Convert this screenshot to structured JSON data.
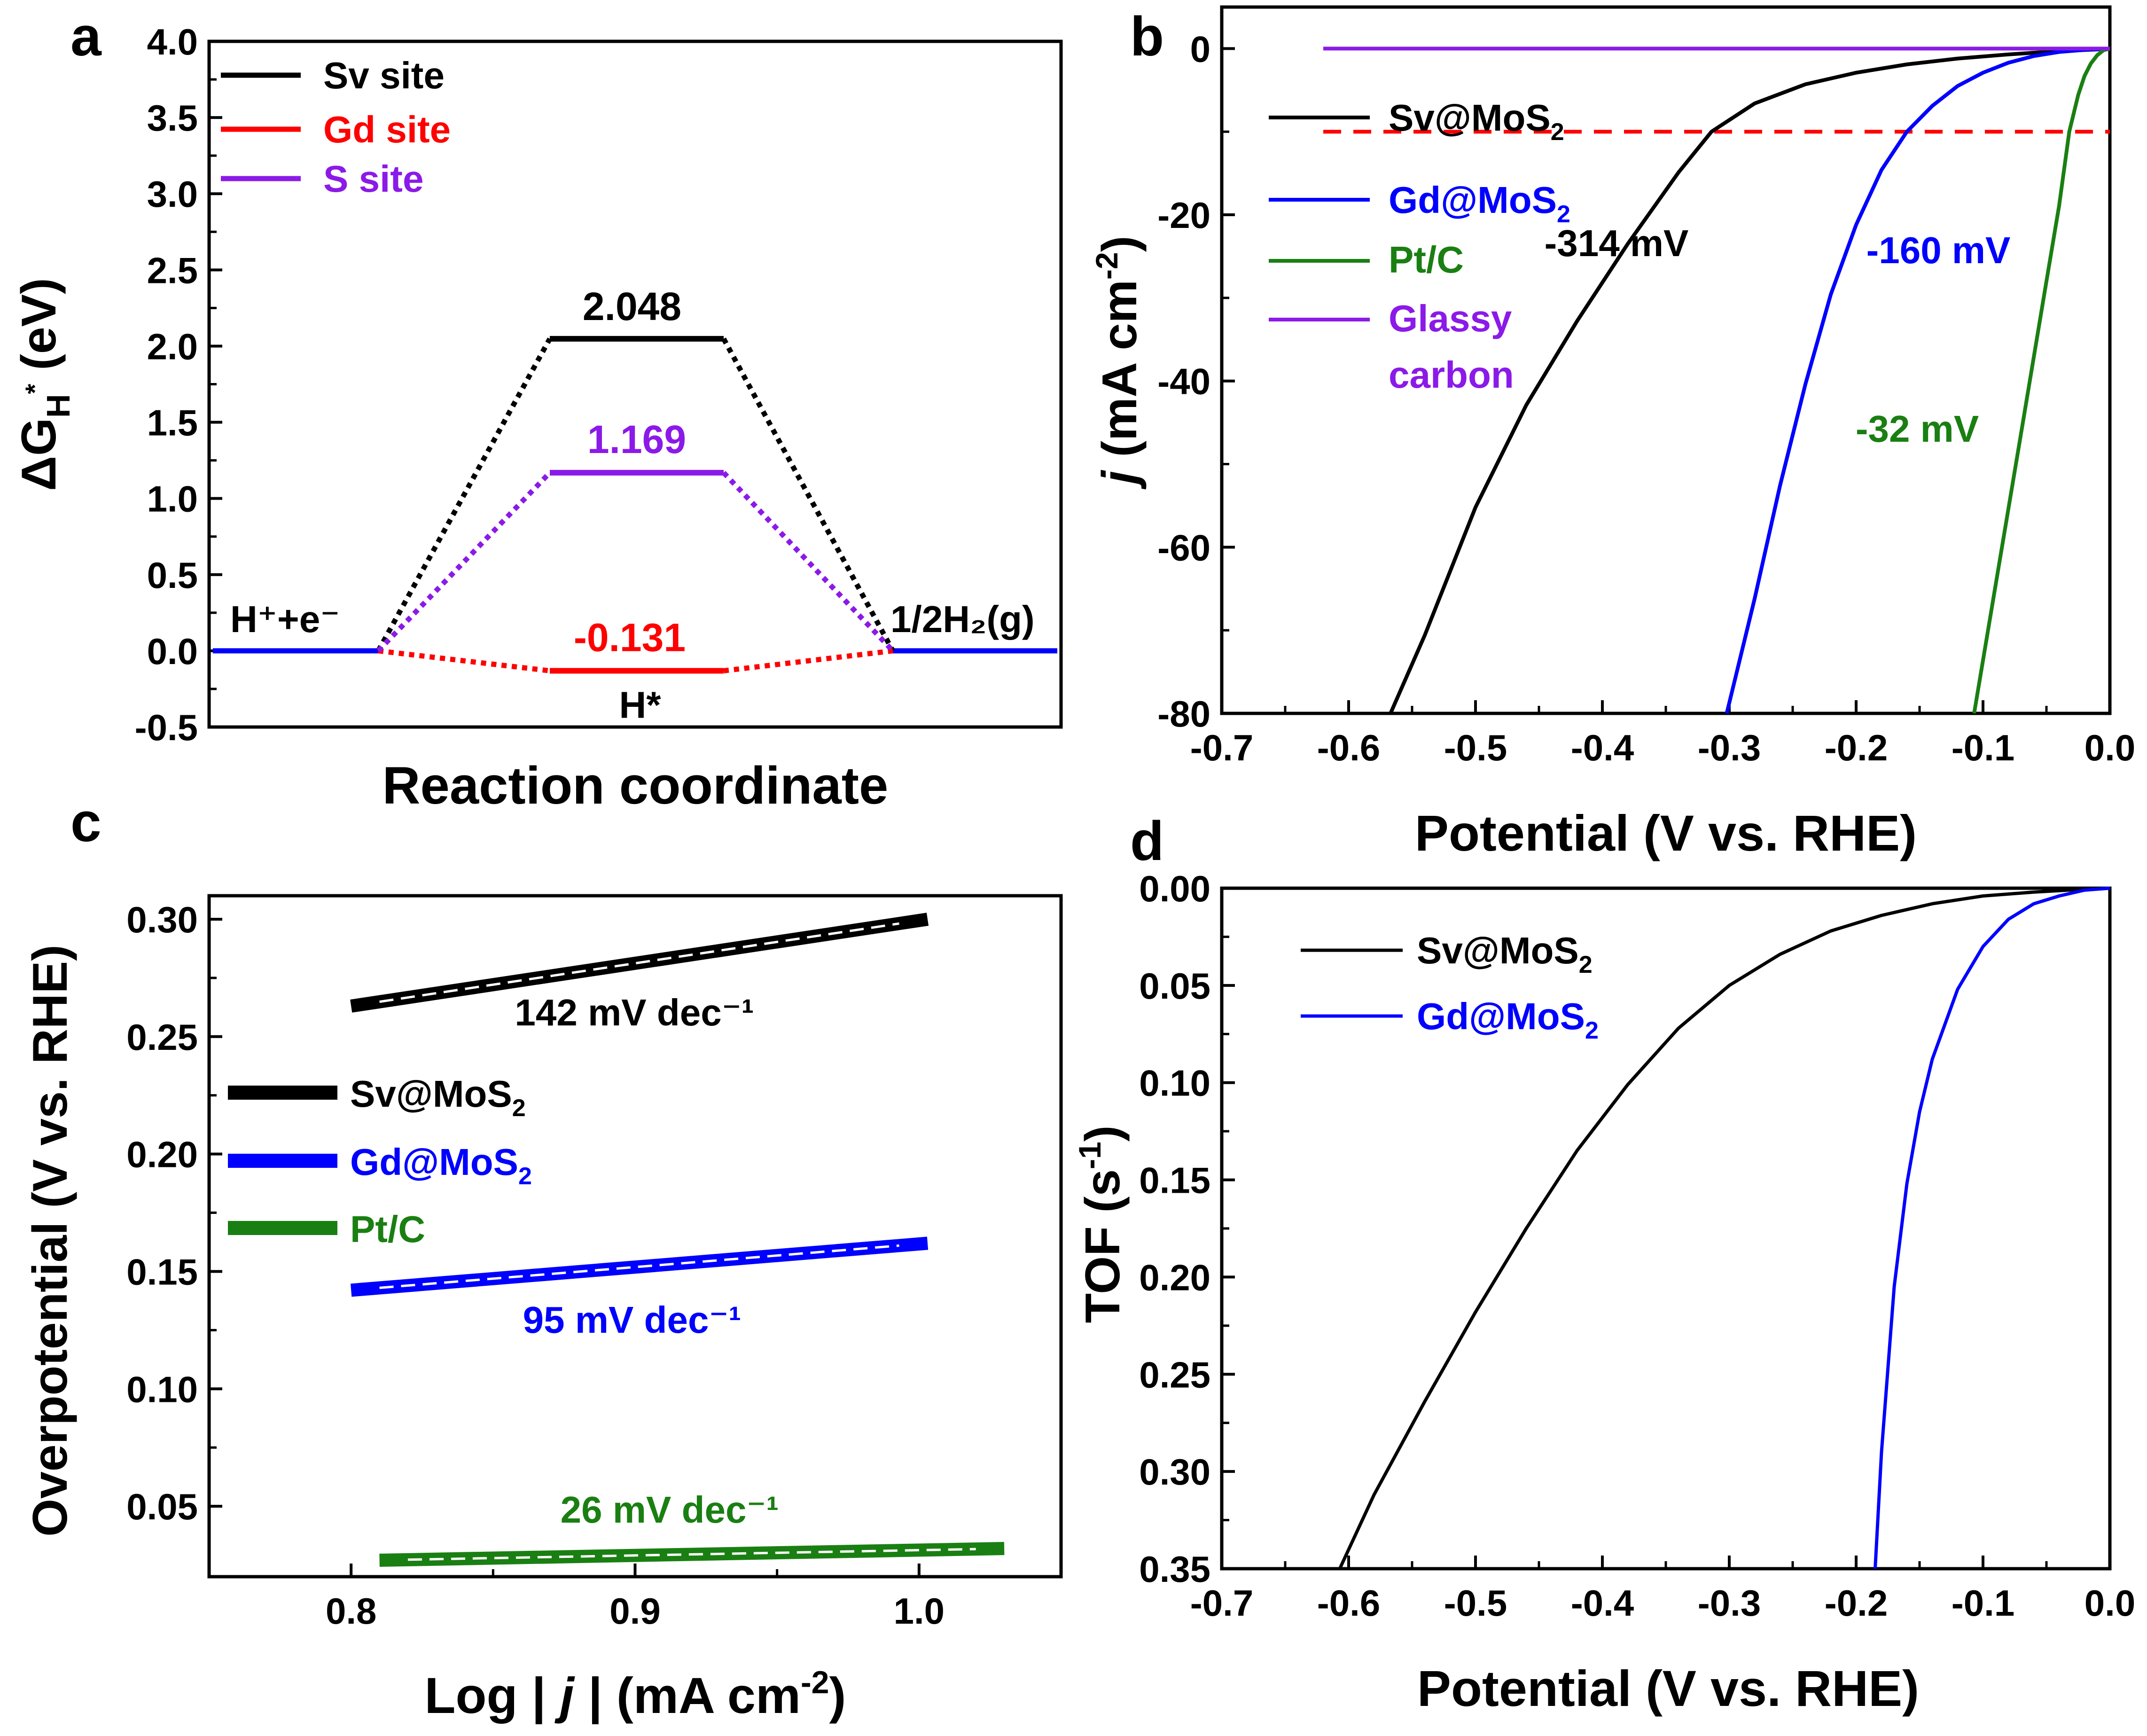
{
  "panel_letters": {
    "a": "a",
    "b": "b",
    "c": "c",
    "d": "d"
  },
  "colors": {
    "black": "#000000",
    "red": "#ff0000",
    "blue": "#0000ff",
    "purple": "#8b1ae8",
    "green": "#1a7f12",
    "dashed_red": "#ff0000",
    "fit_line": "#ffffff"
  },
  "chart_data": [
    {
      "id": "a",
      "type": "line",
      "xlabel": "Reaction coordinate",
      "ylabel": "ΔG",
      "ylabel_sub": "H*",
      "ylim": [
        -0.5,
        4.0
      ],
      "yticks": [
        -0.5,
        0.0,
        0.5,
        1.0,
        1.5,
        2.0,
        2.5,
        3.0,
        3.5,
        4.0
      ],
      "ytick_labels": [
        "-0.5",
        "0.0",
        "0.5",
        "1.0",
        "1.5",
        "2.0",
        "2.5",
        "3.0",
        "3.5",
        "4.0"
      ],
      "series": [
        {
          "name": "Sv site",
          "color": "#000000",
          "values": [
            0,
            2.048,
            0
          ]
        },
        {
          "name": "Gd site",
          "color": "#ff0000",
          "values": [
            0,
            -0.131,
            0
          ]
        },
        {
          "name": "S site",
          "color": "#8b1ae8",
          "values": [
            0,
            1.169,
            0
          ]
        }
      ],
      "value_labels": [
        "2.048",
        "1.169",
        "-0.131"
      ],
      "state_labels": {
        "initial": "H⁺+e⁻",
        "intermediate": "H*",
        "final": "1/2H₂(g)"
      },
      "legend": "top-left"
    },
    {
      "id": "b",
      "type": "line",
      "xlabel": "Potential (V vs. RHE)",
      "ylabel": "j (mA cm⁻²)",
      "xlim": [
        -0.7,
        0.0
      ],
      "ylim": [
        -80,
        5
      ],
      "xticks": [
        -0.7,
        -0.6,
        -0.5,
        -0.4,
        -0.3,
        -0.2,
        -0.1,
        0.0
      ],
      "xtick_labels": [
        "-0.7",
        "-0.6",
        "-0.5",
        "-0.4",
        "-0.3",
        "-0.2",
        "-0.1",
        "0.0"
      ],
      "yticks": [
        -80,
        -60,
        -40,
        -20,
        0
      ],
      "ytick_labels": [
        "-80",
        "-60",
        "-40",
        "-20",
        "0"
      ],
      "reference_line": {
        "y": -10,
        "color": "#ff0000",
        "style": "dashed"
      },
      "series": [
        {
          "name": "Sv@MoS₂",
          "color": "#000000",
          "x": [
            -0.567,
            -0.54,
            -0.5,
            -0.46,
            -0.42,
            -0.38,
            -0.34,
            -0.314,
            -0.28,
            -0.24,
            -0.2,
            -0.16,
            -0.12,
            -0.08,
            -0.04,
            -0.01,
            0.0
          ],
          "y": [
            -80,
            -70.6,
            -55.2,
            -42.9,
            -32.8,
            -23.5,
            -14.9,
            -10,
            -6.6,
            -4.3,
            -2.9,
            -1.9,
            -1.2,
            -0.7,
            -0.3,
            -0.1,
            0
          ]
        },
        {
          "name": "Gd@MoS₂",
          "color": "#0000ff",
          "x": [
            -0.302,
            -0.28,
            -0.26,
            -0.24,
            -0.22,
            -0.2,
            -0.18,
            -0.16,
            -0.14,
            -0.12,
            -0.1,
            -0.08,
            -0.06,
            -0.04,
            -0.02,
            0.0
          ],
          "y": [
            -80,
            -66.2,
            -52.6,
            -40.4,
            -29.6,
            -21.2,
            -14.6,
            -10,
            -6.9,
            -4.5,
            -2.9,
            -1.7,
            -0.9,
            -0.4,
            -0.15,
            0
          ]
        },
        {
          "name": "Pt/C",
          "color": "#1a7f12",
          "x": [
            -0.107,
            -0.09,
            -0.07,
            -0.05,
            -0.04,
            -0.032,
            -0.025,
            -0.02,
            -0.015,
            -0.01,
            -0.005,
            0.0
          ],
          "y": [
            -80,
            -64.5,
            -46.3,
            -28,
            -18.9,
            -10,
            -5.6,
            -3.3,
            -1.8,
            -0.8,
            -0.2,
            0
          ]
        },
        {
          "name": "Glassy carbon",
          "color": "#8b1ae8",
          "x": [
            -0.62,
            -0.3,
            -0.1,
            0.0
          ],
          "y": [
            0,
            0,
            0,
            0
          ]
        }
      ],
      "annotations": [
        {
          "text": "-314 mV",
          "color": "#000000"
        },
        {
          "text": "-160 mV",
          "color": "#0000ff"
        },
        {
          "text": "-32 mV",
          "color": "#1a7f12"
        }
      ],
      "legend": "top-left"
    },
    {
      "id": "c",
      "type": "line",
      "xlabel": "Log | j | (mA cm⁻²)",
      "ylabel": "Overpotential (V vs. RHE)",
      "xlim": [
        0.75,
        1.05
      ],
      "ylim": [
        0.02,
        0.31
      ],
      "xticks": [
        0.8,
        0.9,
        1.0
      ],
      "xtick_labels": [
        "0.8",
        "0.9",
        "1.0"
      ],
      "yticks": [
        0.05,
        0.1,
        0.15,
        0.2,
        0.25,
        0.3
      ],
      "ytick_labels": [
        "0.05",
        "0.10",
        "0.15",
        "0.20",
        "0.25",
        "0.30"
      ],
      "series": [
        {
          "name": "Sv@MoS₂",
          "color": "#000000",
          "x": [
            0.8,
            1.003
          ],
          "y": [
            0.263,
            0.3
          ]
        },
        {
          "name": "Gd@MoS₂",
          "color": "#0000ff",
          "x": [
            0.8,
            1.003
          ],
          "y": [
            0.142,
            0.162
          ]
        },
        {
          "name": "Pt/C",
          "color": "#1a7f12",
          "x": [
            0.81,
            1.03
          ],
          "y": [
            0.027,
            0.032
          ]
        }
      ],
      "annotations": [
        {
          "text": "142 mV dec⁻¹",
          "color": "#000000"
        },
        {
          "text": "95 mV dec⁻¹",
          "color": "#0000ff"
        },
        {
          "text": "26 mV dec⁻¹",
          "color": "#1a7f12"
        }
      ],
      "legend": "middle-left"
    },
    {
      "id": "d",
      "type": "line",
      "xlabel": "Potential (V vs. RHE)",
      "ylabel": "TOF (s⁻¹)",
      "xlim": [
        -0.7,
        0.0
      ],
      "ylim": [
        0.35,
        0.0
      ],
      "xticks": [
        -0.7,
        -0.6,
        -0.5,
        -0.4,
        -0.3,
        -0.2,
        -0.1,
        0.0
      ],
      "xtick_labels": [
        "-0.7",
        "-0.6",
        "-0.5",
        "-0.4",
        "-0.3",
        "-0.2",
        "-0.1",
        "0.0"
      ],
      "yticks": [
        0.0,
        0.05,
        0.1,
        0.15,
        0.2,
        0.25,
        0.3,
        0.35
      ],
      "ytick_labels": [
        "0.00",
        "0.05",
        "0.10",
        "0.15",
        "0.20",
        "0.25",
        "0.30",
        "0.35"
      ],
      "series": [
        {
          "name": "Sv@MoS₂",
          "color": "#000000",
          "x": [
            -0.607,
            -0.58,
            -0.54,
            -0.5,
            -0.46,
            -0.42,
            -0.38,
            -0.34,
            -0.3,
            -0.26,
            -0.22,
            -0.18,
            -0.14,
            -0.1,
            -0.06,
            -0.02,
            0.0
          ],
          "y": [
            0.35,
            0.312,
            0.264,
            0.218,
            0.175,
            0.135,
            0.101,
            0.072,
            0.05,
            0.034,
            0.022,
            0.014,
            0.008,
            0.004,
            0.002,
            0.0005,
            0
          ]
        },
        {
          "name": "Gd@MoS₂",
          "color": "#0000ff",
          "x": [
            -0.185,
            -0.18,
            -0.17,
            -0.16,
            -0.15,
            -0.14,
            -0.12,
            -0.1,
            -0.08,
            -0.06,
            -0.04,
            -0.02,
            0.0
          ],
          "y": [
            0.35,
            0.29,
            0.205,
            0.152,
            0.115,
            0.088,
            0.052,
            0.03,
            0.016,
            0.008,
            0.004,
            0.001,
            0
          ]
        }
      ],
      "legend": "top-left"
    }
  ]
}
